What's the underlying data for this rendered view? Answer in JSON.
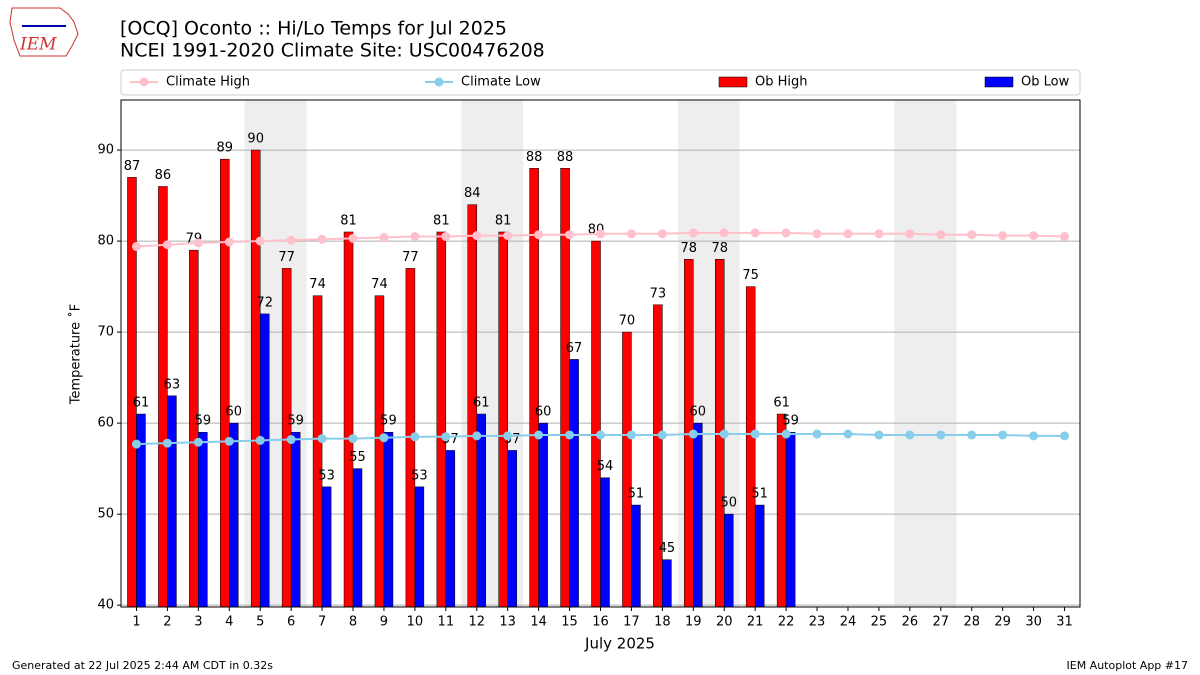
{
  "logo": "IEM",
  "footer_left": "Generated at 22 Jul 2025 2:44 AM CDT in 0.32s",
  "footer_right": "IEM Autoplot App #17",
  "chart_data": {
    "type": "bar",
    "title": "[OCQ] Oconto :: Hi/Lo Temps for Jul 2025",
    "subtitle": "NCEI 1991-2020 Climate Site: USC00476208",
    "y_label": "Temperature ˚F",
    "x_label": "July 2025",
    "categories": [
      "1",
      "2",
      "3",
      "4",
      "5",
      "6",
      "7",
      "8",
      "9",
      "10",
      "11",
      "12",
      "13",
      "14",
      "15",
      "16",
      "17",
      "18",
      "19",
      "20",
      "21",
      "22",
      "23",
      "24",
      "25",
      "26",
      "27",
      "28",
      "29",
      "30",
      "31"
    ],
    "shaded": [
      "5",
      "6",
      "12",
      "13",
      "19",
      "20",
      "26",
      "27"
    ],
    "series": [
      {
        "name": "Climate High",
        "type": "line",
        "color": "#ffc0cb",
        "values": [
          79.4,
          79.6,
          79.8,
          79.9,
          80.0,
          80.1,
          80.2,
          80.3,
          80.4,
          80.5,
          80.5,
          80.6,
          80.6,
          80.7,
          80.7,
          80.8,
          80.8,
          80.8,
          80.9,
          80.9,
          80.9,
          80.9,
          80.8,
          80.8,
          80.8,
          80.8,
          80.7,
          80.7,
          80.6,
          80.6,
          80.5
        ]
      },
      {
        "name": "Climate Low",
        "type": "line",
        "color": "#87ceeb",
        "values": [
          57.7,
          57.8,
          57.9,
          58.0,
          58.1,
          58.2,
          58.3,
          58.3,
          58.4,
          58.5,
          58.5,
          58.6,
          58.6,
          58.7,
          58.7,
          58.7,
          58.7,
          58.7,
          58.8,
          58.8,
          58.8,
          58.8,
          58.8,
          58.8,
          58.7,
          58.7,
          58.7,
          58.7,
          58.7,
          58.6,
          58.6
        ]
      },
      {
        "name": "Ob High",
        "type": "bar",
        "color": "#ff0000",
        "values": [
          87,
          86,
          79,
          89,
          90,
          77,
          74,
          81,
          74,
          77,
          81,
          84,
          81,
          88,
          88,
          80,
          70,
          73,
          78,
          78,
          75,
          61,
          null,
          null,
          null,
          null,
          null,
          null,
          null,
          null,
          null
        ]
      },
      {
        "name": "Ob Low",
        "type": "bar",
        "color": "#0000ff",
        "values": [
          61,
          63,
          59,
          60,
          72,
          59,
          53,
          55,
          59,
          53,
          57,
          61,
          57,
          60,
          67,
          54,
          51,
          45,
          60,
          50,
          51,
          59,
          null,
          null,
          null,
          null,
          null,
          null,
          null,
          null,
          null
        ]
      }
    ],
    "ylim": [
      39.8,
      95.5
    ],
    "yticks": [
      40,
      50,
      60,
      70,
      80,
      90
    ],
    "grid": true
  }
}
